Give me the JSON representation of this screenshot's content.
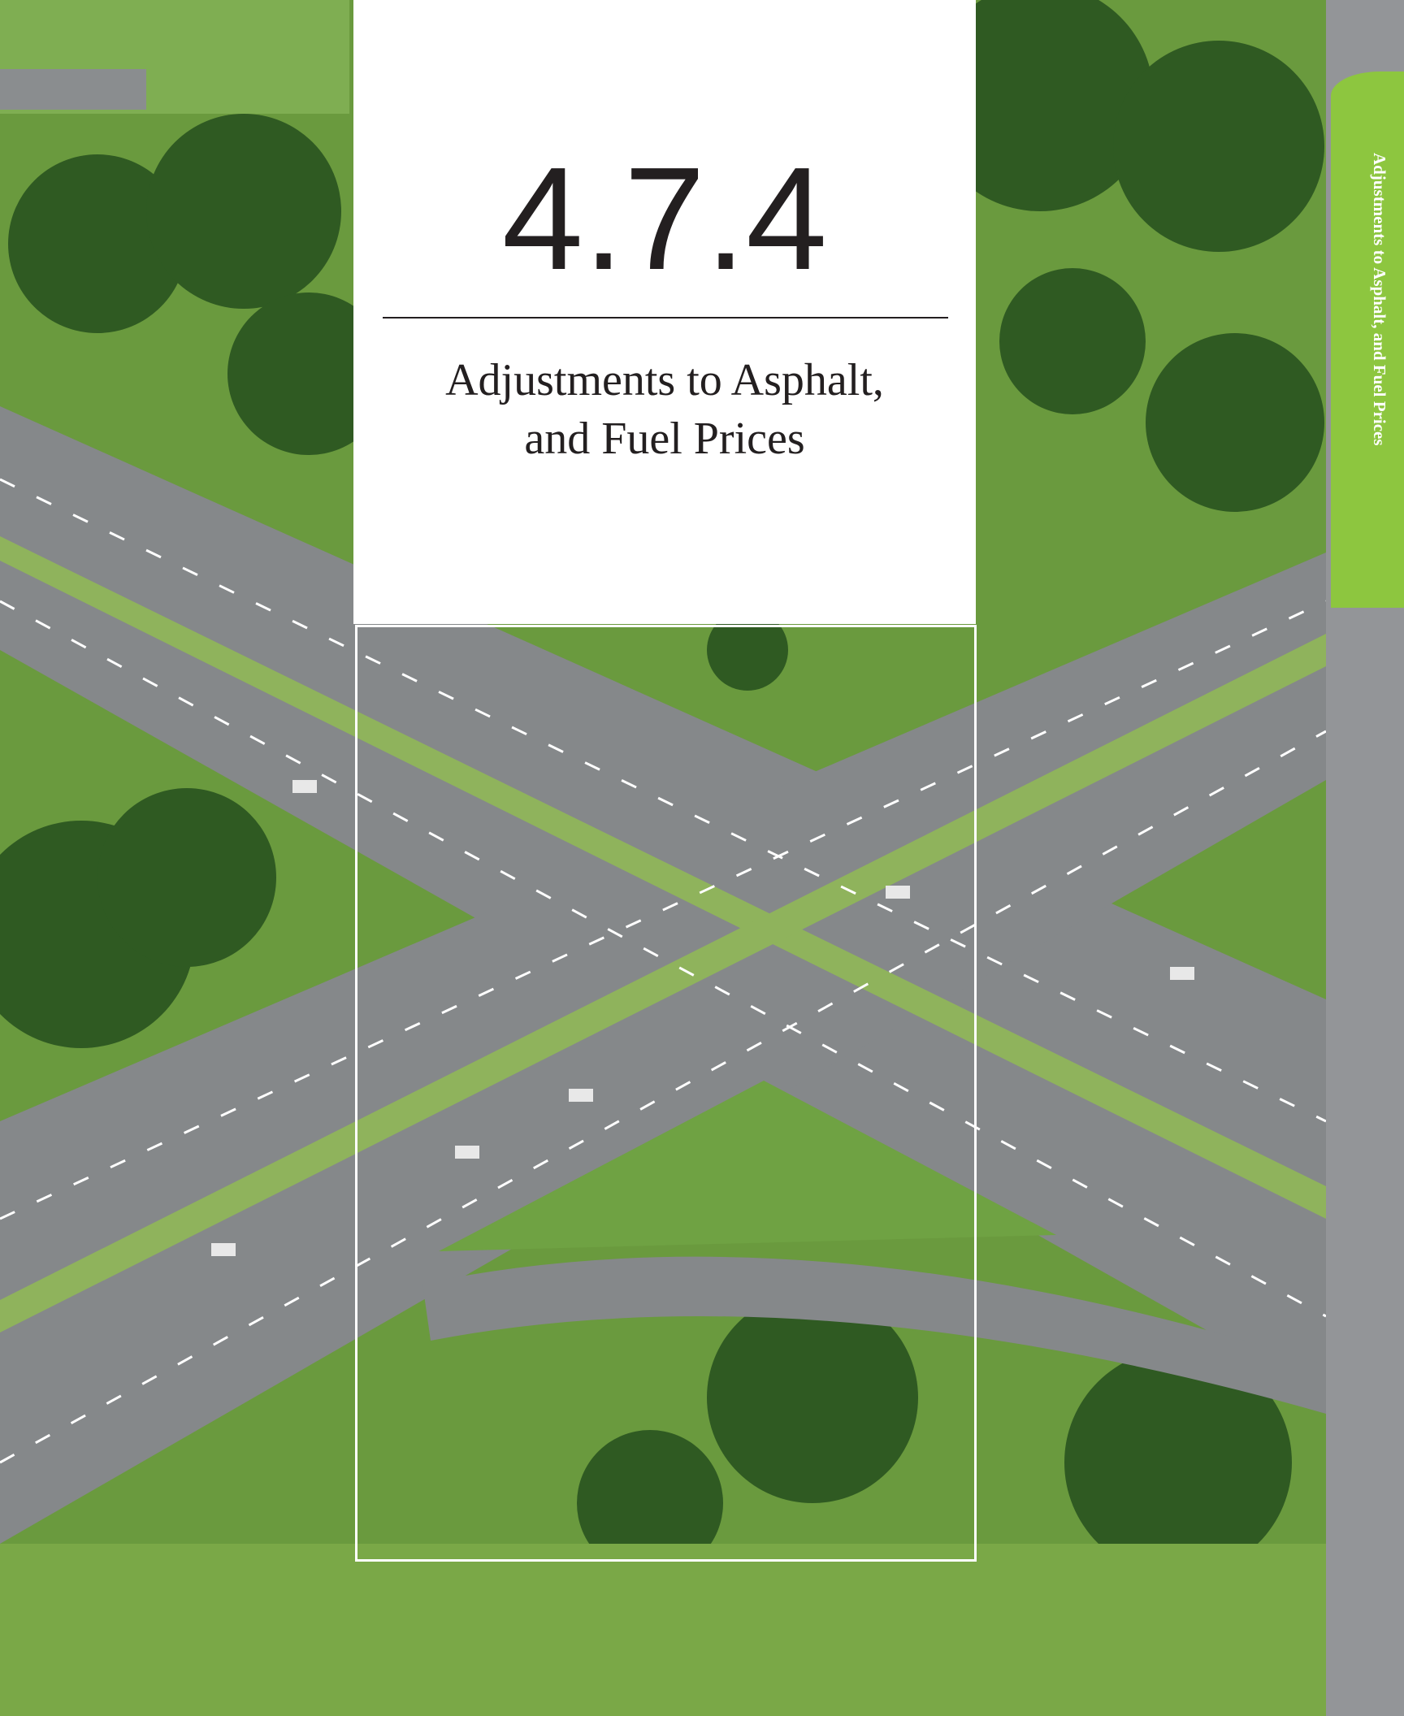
{
  "section_number": "4.7.4",
  "title_lines": [
    "Adjustments to Asphalt,",
    "and Fuel Prices"
  ],
  "side_tab": "Adjustments to Asphalt, and Fuel Prices"
}
